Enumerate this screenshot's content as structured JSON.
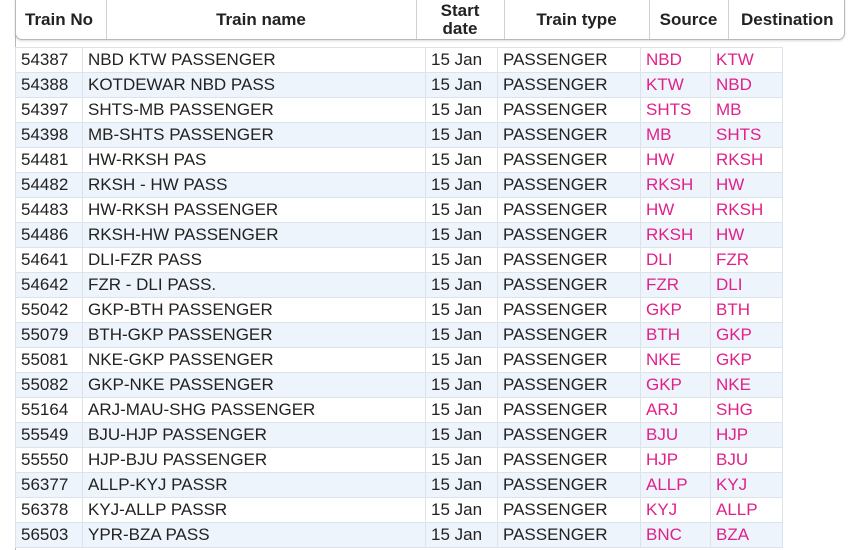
{
  "table": {
    "header": [
      "Train No",
      "Train name",
      "Start date",
      "Train type",
      "Source",
      "Destination"
    ],
    "rows": [
      [
        "54387",
        "NBD KTW PASSENGER",
        "15 Jan",
        "PASSENGER",
        "NBD",
        "KTW"
      ],
      [
        "54388",
        "KOTDEWAR NBD PASS",
        "15 Jan",
        "PASSENGER",
        "KTW",
        "NBD"
      ],
      [
        "54397",
        "SHTS-MB PASSENGER",
        "15 Jan",
        "PASSENGER",
        "SHTS",
        "MB"
      ],
      [
        "54398",
        "MB-SHTS PASSENGER",
        "15 Jan",
        "PASSENGER",
        "MB",
        "SHTS"
      ],
      [
        "54481",
        "HW-RKSH PAS",
        "15 Jan",
        "PASSENGER",
        "HW",
        "RKSH"
      ],
      [
        "54482",
        "RKSH - HW PASS",
        "15 Jan",
        "PASSENGER",
        "RKSH",
        "HW"
      ],
      [
        "54483",
        "HW-RKSH PASSENGER",
        "15 Jan",
        "PASSENGER",
        "HW",
        "RKSH"
      ],
      [
        "54486",
        "RKSH-HW PASSENGER",
        "15 Jan",
        "PASSENGER",
        "RKSH",
        "HW"
      ],
      [
        "54641",
        "DLI-FZR PASS",
        "15 Jan",
        "PASSENGER",
        "DLI",
        "FZR"
      ],
      [
        "54642",
        "FZR - DLI PASS.",
        "15 Jan",
        "PASSENGER",
        "FZR",
        "DLI"
      ],
      [
        "55042",
        "GKP-BTH PASSENGER",
        "15 Jan",
        "PASSENGER",
        "GKP",
        "BTH"
      ],
      [
        "55079",
        "BTH-GKP PASSENGER",
        "15 Jan",
        "PASSENGER",
        "BTH",
        "GKP"
      ],
      [
        "55081",
        "NKE-GKP PASSENGER",
        "15 Jan",
        "PASSENGER",
        "NKE",
        "GKP"
      ],
      [
        "55082",
        "GKP-NKE PASSENGER",
        "15 Jan",
        "PASSENGER",
        "GKP",
        "NKE"
      ],
      [
        "55164",
        "ARJ-MAU-SHG PASSENGER",
        "15 Jan",
        "PASSENGER",
        "ARJ",
        "SHG"
      ],
      [
        "55549",
        "BJU-HJP PASSENGER",
        "15 Jan",
        "PASSENGER",
        "BJU",
        "HJP"
      ],
      [
        "55550",
        "HJP-BJU PASSENGER",
        "15 Jan",
        "PASSENGER",
        "HJP",
        "BJU"
      ],
      [
        "56377",
        "ALLP-KYJ PASSR",
        "15 Jan",
        "PASSENGER",
        "ALLP",
        "KYJ"
      ],
      [
        "56378",
        "KYJ-ALLP PASSR",
        "15 Jan",
        "PASSENGER",
        "KYJ",
        "ALLP"
      ],
      [
        "56503",
        "YPR-BZA PASS",
        "15 Jan",
        "PASSENGER",
        "BNC",
        "BZA"
      ]
    ]
  }
}
